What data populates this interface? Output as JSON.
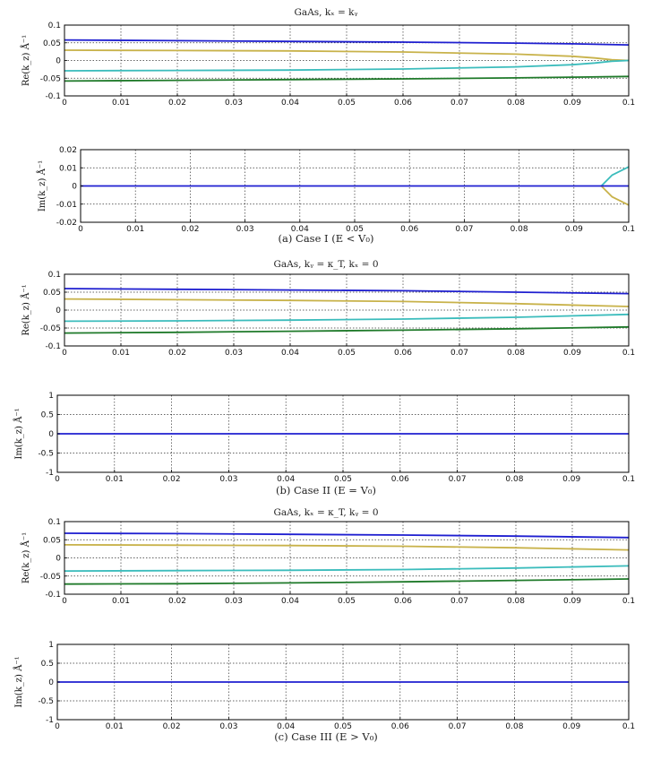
{
  "figure": {
    "captions": [
      "(a) Case I (E < V₀)",
      "(b) Case II (E = V₀)",
      "(c) Case III (E > V₀)"
    ],
    "titles": [
      "GaAs, kₓ = kᵧ",
      "GaAs, kᵧ = κ_T, kₓ = 0",
      "GaAs, kₓ = κ_T, kᵧ = 0"
    ]
  },
  "colors": {
    "blue": "#1f1fd0",
    "cyan": "#3bbcbc",
    "gold": "#c8b24a",
    "green": "#1f7a2a",
    "axis": "#000000",
    "grid": "#333333"
  },
  "chart_data": [
    {
      "id": "a_re",
      "type": "line",
      "title": "GaAs, kₓ = kᵧ",
      "ylabel": "Re(k_z) Å⁻¹",
      "xlim": [
        0,
        0.1
      ],
      "ylim": [
        -0.1,
        0.1
      ],
      "xticks": [
        0,
        0.01,
        0.02,
        0.03,
        0.04,
        0.05,
        0.06,
        0.07,
        0.08,
        0.09,
        0.1
      ],
      "xtick_labels": [
        "0",
        "0.01",
        "0.02",
        "0.03",
        "0.04",
        "0.05",
        "0.06",
        "0.07",
        "0.08",
        "0.09",
        "0.1"
      ],
      "yticks": [
        0.1,
        0.05,
        0,
        -0.05,
        -0.1
      ],
      "ytick_labels": [
        "0.1",
        "0.05",
        "0",
        "-0.05",
        "-0.1"
      ],
      "grid": true,
      "series": [
        {
          "name": "blue",
          "color": "blue",
          "x": [
            0,
            0.02,
            0.04,
            0.06,
            0.08,
            0.09,
            0.1
          ],
          "y": [
            0.058,
            0.056,
            0.054,
            0.052,
            0.049,
            0.047,
            0.044
          ]
        },
        {
          "name": "gold",
          "color": "gold",
          "x": [
            0,
            0.02,
            0.04,
            0.06,
            0.08,
            0.09,
            0.094,
            0.097,
            0.1
          ],
          "y": [
            0.029,
            0.028,
            0.027,
            0.024,
            0.018,
            0.012,
            0.007,
            0.002,
            0.0
          ]
        },
        {
          "name": "cyan",
          "color": "cyan",
          "x": [
            0,
            0.02,
            0.04,
            0.06,
            0.08,
            0.09,
            0.094,
            0.097,
            0.1
          ],
          "y": [
            -0.029,
            -0.028,
            -0.027,
            -0.024,
            -0.018,
            -0.012,
            -0.007,
            -0.002,
            0.0
          ]
        },
        {
          "name": "green",
          "color": "green",
          "x": [
            0,
            0.02,
            0.04,
            0.06,
            0.08,
            0.09,
            0.1
          ],
          "y": [
            -0.058,
            -0.056,
            -0.054,
            -0.052,
            -0.049,
            -0.047,
            -0.045
          ]
        }
      ]
    },
    {
      "id": "a_im",
      "type": "line",
      "title": "",
      "ylabel": "Im(k_z) Å⁻¹",
      "xlim": [
        0,
        0.1
      ],
      "ylim": [
        -0.02,
        0.02
      ],
      "xticks": [
        0,
        0.01,
        0.02,
        0.03,
        0.04,
        0.05,
        0.06,
        0.07,
        0.08,
        0.09,
        0.1
      ],
      "xtick_labels": [
        "0",
        "0.01",
        "0.02",
        "0.03",
        "0.04",
        "0.05",
        "0.06",
        "0.07",
        "0.08",
        "0.09",
        "0.1"
      ],
      "yticks": [
        0.02,
        0.01,
        0,
        -0.01,
        -0.02
      ],
      "ytick_labels": [
        "0.02",
        "0.01",
        "0",
        "-0.01",
        "-0.02"
      ],
      "grid": true,
      "series": [
        {
          "name": "cyan",
          "color": "cyan",
          "x": [
            0.095,
            0.097,
            0.1
          ],
          "y": [
            0.0,
            0.006,
            0.0105
          ]
        },
        {
          "name": "gold",
          "color": "gold",
          "x": [
            0.095,
            0.097,
            0.1
          ],
          "y": [
            0.0,
            -0.006,
            -0.0105
          ]
        },
        {
          "name": "blue",
          "color": "blue",
          "x": [
            0,
            0.1
          ],
          "y": [
            0,
            0
          ]
        }
      ]
    },
    {
      "id": "b_re",
      "type": "line",
      "title": "GaAs, kᵧ = κ_T, kₓ = 0",
      "ylabel": "Re(k_z) Å⁻¹",
      "xlim": [
        0,
        0.1
      ],
      "ylim": [
        -0.1,
        0.1
      ],
      "xticks": [
        0,
        0.01,
        0.02,
        0.03,
        0.04,
        0.05,
        0.06,
        0.07,
        0.08,
        0.09,
        0.1
      ],
      "xtick_labels": [
        "0",
        "0.01",
        "0.02",
        "0.03",
        "0.04",
        "0.05",
        "0.06",
        "0.07",
        "0.08",
        "0.09",
        "0.1"
      ],
      "yticks": [
        0.1,
        0.05,
        0,
        -0.05,
        -0.1
      ],
      "ytick_labels": [
        "0.1",
        "0.05",
        "0",
        "-0.05",
        "-0.1"
      ],
      "grid": true,
      "series": [
        {
          "name": "blue",
          "color": "blue",
          "x": [
            0,
            0.02,
            0.04,
            0.06,
            0.08,
            0.1
          ],
          "y": [
            0.06,
            0.058,
            0.056,
            0.054,
            0.05,
            0.046
          ]
        },
        {
          "name": "gold",
          "color": "gold",
          "x": [
            0,
            0.02,
            0.04,
            0.06,
            0.08,
            0.1
          ],
          "y": [
            0.031,
            0.029,
            0.027,
            0.024,
            0.018,
            0.01
          ]
        },
        {
          "name": "cyan",
          "color": "cyan",
          "x": [
            0,
            0.02,
            0.04,
            0.06,
            0.08,
            0.1
          ],
          "y": [
            -0.031,
            -0.03,
            -0.028,
            -0.025,
            -0.02,
            -0.012
          ]
        },
        {
          "name": "green",
          "color": "green",
          "x": [
            0,
            0.02,
            0.04,
            0.06,
            0.08,
            0.1
          ],
          "y": [
            -0.064,
            -0.062,
            -0.059,
            -0.056,
            -0.052,
            -0.047
          ]
        }
      ]
    },
    {
      "id": "b_im",
      "type": "line",
      "title": "",
      "ylabel": "Im(k_z) Å⁻¹",
      "xlim": [
        0,
        0.1
      ],
      "ylim": [
        -1,
        1
      ],
      "xticks": [
        0,
        0.01,
        0.02,
        0.03,
        0.04,
        0.05,
        0.06,
        0.07,
        0.08,
        0.09,
        0.1
      ],
      "xtick_labels": [
        "0",
        "0.01",
        "0.02",
        "0.03",
        "0.04",
        "0.05",
        "0.06",
        "0.07",
        "0.08",
        "0.09",
        "0.1"
      ],
      "yticks": [
        1,
        0.5,
        0,
        -0.5,
        -1
      ],
      "ytick_labels": [
        "1",
        "0.5",
        "0",
        "-0.5",
        "-1"
      ],
      "grid": true,
      "series": [
        {
          "name": "blue",
          "color": "blue",
          "x": [
            0,
            0.1
          ],
          "y": [
            0,
            0
          ]
        }
      ]
    },
    {
      "id": "c_re",
      "type": "line",
      "title": "GaAs, kₓ = κ_T, kᵧ = 0",
      "ylabel": "Re(k_z) Å⁻¹",
      "xlim": [
        0,
        0.1
      ],
      "ylim": [
        -0.1,
        0.1
      ],
      "xticks": [
        0,
        0.01,
        0.02,
        0.03,
        0.04,
        0.05,
        0.06,
        0.07,
        0.08,
        0.09,
        0.1
      ],
      "xtick_labels": [
        "0",
        "0.01",
        "0.02",
        "0.03",
        "0.04",
        "0.05",
        "0.06",
        "0.07",
        "0.08",
        "0.09",
        "0.1"
      ],
      "yticks": [
        0.1,
        0.05,
        0,
        -0.05,
        -0.1
      ],
      "ytick_labels": [
        "0.1",
        "0.05",
        "0",
        "-0.05",
        "-0.1"
      ],
      "grid": true,
      "series": [
        {
          "name": "blue",
          "color": "blue",
          "x": [
            0,
            0.02,
            0.04,
            0.06,
            0.08,
            0.1
          ],
          "y": [
            0.068,
            0.067,
            0.065,
            0.063,
            0.06,
            0.056
          ]
        },
        {
          "name": "gold",
          "color": "gold",
          "x": [
            0,
            0.02,
            0.04,
            0.06,
            0.08,
            0.1
          ],
          "y": [
            0.036,
            0.035,
            0.034,
            0.032,
            0.028,
            0.022
          ]
        },
        {
          "name": "cyan",
          "color": "cyan",
          "x": [
            0,
            0.02,
            0.04,
            0.06,
            0.08,
            0.1
          ],
          "y": [
            -0.036,
            -0.035,
            -0.034,
            -0.032,
            -0.028,
            -0.022
          ]
        },
        {
          "name": "green",
          "color": "green",
          "x": [
            0,
            0.02,
            0.04,
            0.06,
            0.08,
            0.1
          ],
          "y": [
            -0.072,
            -0.071,
            -0.069,
            -0.066,
            -0.062,
            -0.058
          ]
        }
      ]
    },
    {
      "id": "c_im",
      "type": "line",
      "title": "",
      "ylabel": "Im(k_z) Å⁻¹",
      "xlim": [
        0,
        0.1
      ],
      "ylim": [
        -1,
        1
      ],
      "xticks": [
        0,
        0.01,
        0.02,
        0.03,
        0.04,
        0.05,
        0.06,
        0.07,
        0.08,
        0.09,
        0.1
      ],
      "xtick_labels": [
        "0",
        "0.01",
        "0.02",
        "0.03",
        "0.04",
        "0.05",
        "0.06",
        "0.07",
        "0.08",
        "0.09",
        "0.1"
      ],
      "yticks": [
        1,
        0.5,
        0,
        -0.5,
        -1
      ],
      "ytick_labels": [
        "1",
        "0.5",
        "0",
        "-0.5",
        "-1"
      ],
      "grid": true,
      "series": [
        {
          "name": "blue",
          "color": "blue",
          "x": [
            0,
            0.1
          ],
          "y": [
            0,
            0
          ]
        }
      ]
    }
  ]
}
